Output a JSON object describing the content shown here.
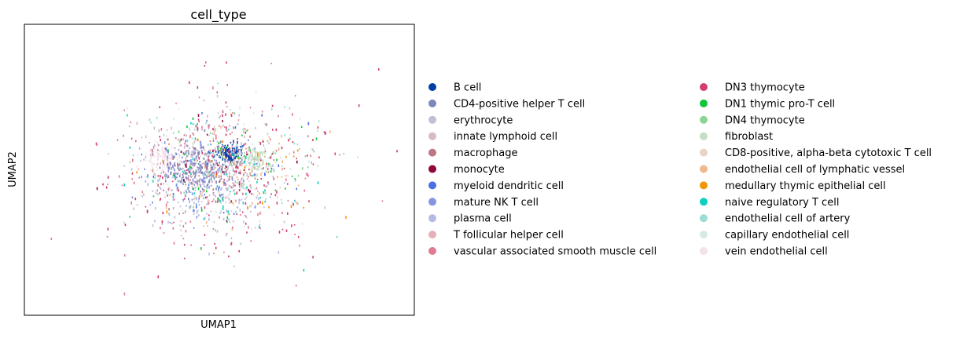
{
  "chart_data": {
    "type": "scatter",
    "title": "cell_type",
    "xlabel": "UMAP1",
    "ylabel": "UMAP2",
    "grid": false,
    "legend_placement": "right",
    "xlim": [
      -10,
      10
    ],
    "ylim": [
      -10,
      10
    ],
    "series": [
      {
        "name": "B cell",
        "color": "#023fa5",
        "center": [
          0.5,
          1.2
        ],
        "spread": 0.55,
        "count": 140
      },
      {
        "name": "CD4-positive helper T cell",
        "color": "#7d87b9",
        "center": [
          -1.1,
          0.2
        ],
        "spread": 1.6,
        "count": 260
      },
      {
        "name": "erythrocyte",
        "color": "#bec1d4",
        "center": [
          -0.8,
          -0.5
        ],
        "spread": 3.5,
        "count": 90
      },
      {
        "name": "innate lymphoid cell",
        "color": "#d6bcc0",
        "center": [
          -0.5,
          1.0
        ],
        "spread": 2.8,
        "count": 50
      },
      {
        "name": "macrophage",
        "color": "#bb7784",
        "center": [
          -0.3,
          0.6
        ],
        "spread": 3.2,
        "count": 50
      },
      {
        "name": "monocyte",
        "color": "#8e063b",
        "center": [
          0.0,
          0.5
        ],
        "spread": 3.5,
        "count": 30
      },
      {
        "name": "myeloid dendritic cell",
        "color": "#4a6fe3",
        "center": [
          0.0,
          0.0
        ],
        "spread": 3.2,
        "count": 40
      },
      {
        "name": "mature NK T cell",
        "color": "#8595e1",
        "center": [
          -1.2,
          -0.6
        ],
        "spread": 2.6,
        "count": 110
      },
      {
        "name": "plasma cell",
        "color": "#b5bbe3",
        "center": [
          -0.4,
          -1.2
        ],
        "spread": 3.6,
        "count": 130
      },
      {
        "name": "T follicular helper cell",
        "color": "#e6afb9",
        "center": [
          -0.6,
          0.5
        ],
        "spread": 3.0,
        "count": 60
      },
      {
        "name": "vascular associated smooth muscle cell",
        "color": "#e07b91",
        "center": [
          0.0,
          0.0
        ],
        "spread": 5.2,
        "count": 150
      },
      {
        "name": "DN3 thymocyte",
        "color": "#d33f6a",
        "center": [
          0.0,
          0.2
        ],
        "spread": 5.4,
        "count": 160
      },
      {
        "name": "DN1 thymic pro-T cell",
        "color": "#11c638",
        "center": [
          0.5,
          0.0
        ],
        "spread": 3.6,
        "count": 40
      },
      {
        "name": "DN4 thymocyte",
        "color": "#8dd593",
        "center": [
          0.8,
          0.5
        ],
        "spread": 3.8,
        "count": 40
      },
      {
        "name": "fibroblast",
        "color": "#c6dec7",
        "center": [
          1.7,
          0.8
        ],
        "spread": 0.9,
        "count": 120
      },
      {
        "name": "CD8-positive, alpha-beta cytotoxic T cell",
        "color": "#ead3c6",
        "center": [
          0.5,
          -1.0
        ],
        "spread": 2.6,
        "count": 60
      },
      {
        "name": "endothelial cell of lymphatic vessel",
        "color": "#f0b98d",
        "center": [
          1.0,
          -0.5
        ],
        "spread": 4.0,
        "count": 40
      },
      {
        "name": "medullary thymic epithelial cell",
        "color": "#ef9708",
        "center": [
          1.5,
          -1.0
        ],
        "spread": 3.4,
        "count": 30
      },
      {
        "name": "naive regulatory T cell",
        "color": "#0fcfc0",
        "center": [
          0.0,
          -0.3
        ],
        "spread": 4.0,
        "count": 50
      },
      {
        "name": "endothelial cell of artery",
        "color": "#9cded6",
        "center": [
          0.2,
          0.5
        ],
        "spread": 4.2,
        "count": 50
      },
      {
        "name": "capillary endothelial cell",
        "color": "#d5eae7",
        "center": [
          0.3,
          0.0
        ],
        "spread": 4.2,
        "count": 40
      },
      {
        "name": "vein endothelial cell",
        "color": "#f3e1eb",
        "center": [
          -3.0,
          1.0
        ],
        "spread": 0.9,
        "count": 90
      }
    ]
  }
}
